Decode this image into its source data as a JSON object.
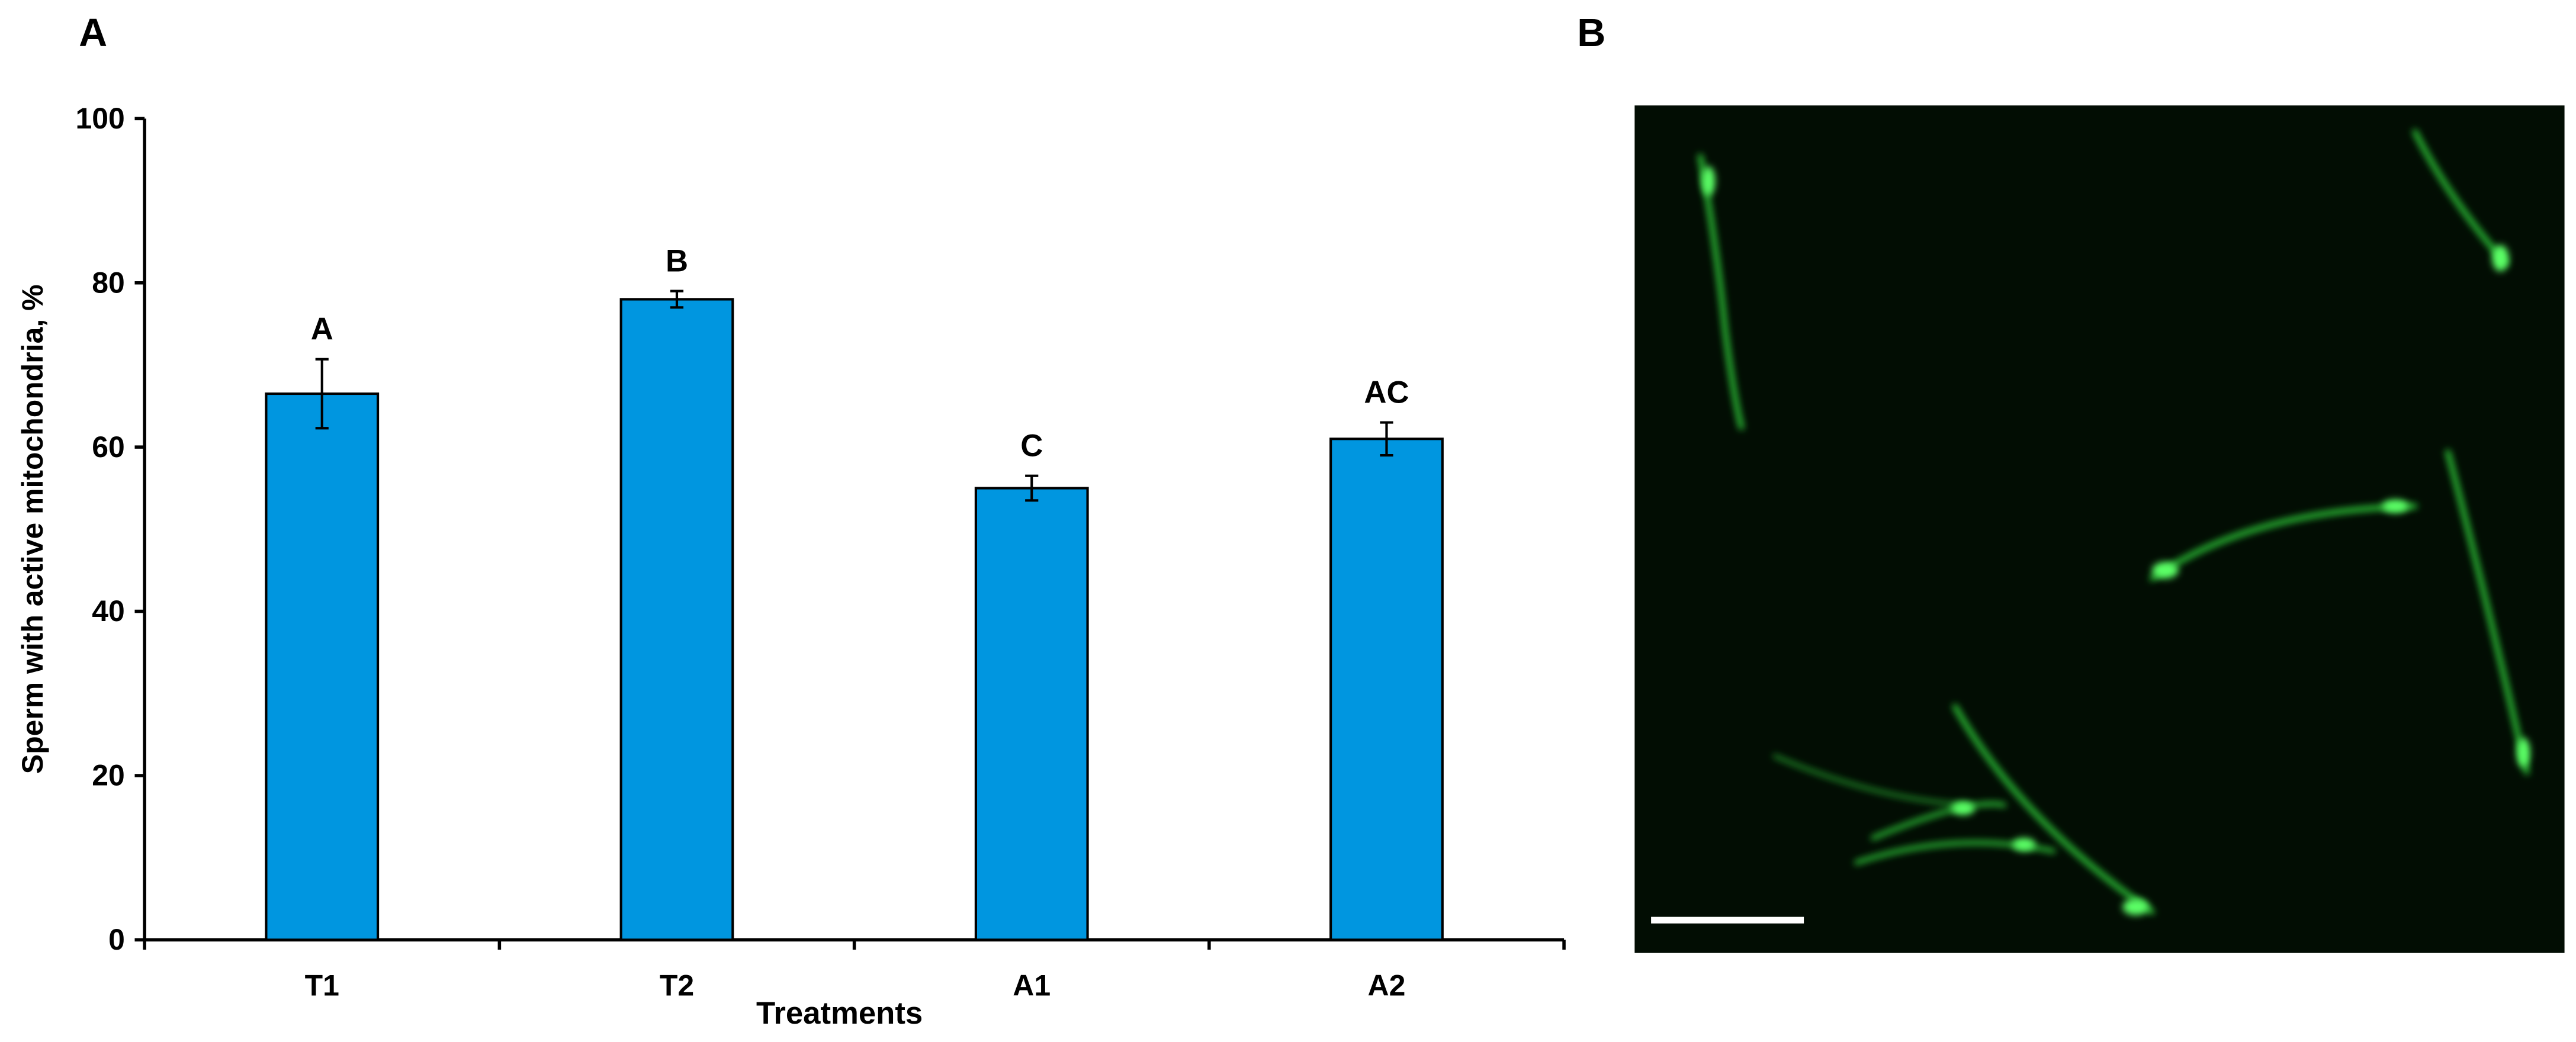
{
  "panels": [
    "A",
    "B"
  ],
  "chart_data": {
    "type": "bar",
    "y_label": "Sperm with active mitochondria, %",
    "x_label": "Treatments",
    "categories": [
      "T1",
      "T2",
      "A1",
      "A2"
    ],
    "values": [
      66.5,
      78,
      55,
      61
    ],
    "errors": [
      4.2,
      1,
      1.5,
      2
    ],
    "significance_labels": [
      "A",
      "B",
      "C",
      "AC"
    ],
    "color": "#0096e0",
    "ylim": [
      0,
      100
    ],
    "yticks": [
      0,
      20,
      40,
      60,
      80,
      100
    ],
    "grid": false
  }
}
